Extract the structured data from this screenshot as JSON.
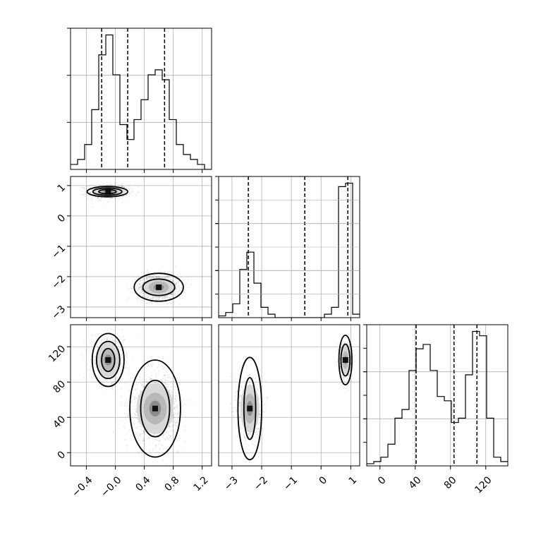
{
  "chart_data": {
    "type": "corner",
    "title": "",
    "grid": true,
    "line_color": "#000000",
    "fill_color": "#8c8c8c",
    "params": [
      {
        "xlim": [
          -0.62,
          1.33
        ],
        "ticks": [
          -0.4,
          -0.0,
          0.4,
          0.8,
          1.2
        ],
        "tick_labels": [
          "−0.4",
          "−0.0",
          "0.4",
          "0.8",
          "1.2"
        ]
      },
      {
        "xlim": [
          -3.45,
          1.3
        ],
        "ticks": [
          -3,
          -2,
          -1,
          0,
          1
        ],
        "tick_labels": [
          "−3",
          "−2",
          "−1",
          "0",
          "1"
        ]
      },
      {
        "xlim": [
          -15,
          145
        ],
        "ticks": [
          0,
          40,
          80,
          120
        ],
        "tick_labels": [
          "0",
          "40",
          "80",
          "120"
        ]
      }
    ],
    "histograms": [
      {
        "param": 0,
        "edges": [
          -0.62,
          -0.5225,
          -0.425,
          -0.3275,
          -0.23,
          -0.1325,
          -0.035,
          0.0625,
          0.16,
          0.2575,
          0.355,
          0.4525,
          0.55,
          0.6475,
          0.745,
          0.8425,
          0.94,
          1.0375,
          1.135,
          1.2325,
          1.33
        ],
        "counts": [
          1,
          2,
          5,
          12,
          23,
          27,
          19,
          9,
          6,
          10,
          14,
          19,
          20,
          18,
          10,
          5,
          3,
          2,
          1,
          0
        ],
        "quantiles": [
          -0.19,
          0.17,
          0.68
        ]
      },
      {
        "param": 1,
        "edges": [
          -3.45,
          -3.2125,
          -2.975,
          -2.7375,
          -2.5,
          -2.2625,
          -2.025,
          -1.7875,
          -1.55,
          -1.3125,
          -1.075,
          -0.8375,
          -0.6,
          -0.3625,
          -0.125,
          0.1125,
          0.35,
          0.5875,
          0.825,
          1.0625,
          1.3
        ],
        "counts": [
          0.5,
          1.5,
          4,
          14,
          19,
          10,
          3,
          1,
          0,
          0,
          0,
          0,
          0,
          0,
          0,
          1,
          3,
          38,
          39,
          1
        ],
        "quantiles": [
          -2.45,
          -0.55,
          0.9
        ]
      },
      {
        "param": 2,
        "edges": [
          -15,
          -7,
          1,
          9,
          17,
          25,
          33,
          41,
          49,
          57,
          65,
          73,
          81,
          89,
          97,
          105,
          113,
          121,
          129,
          137,
          145
        ],
        "counts": [
          0.5,
          1,
          2,
          5,
          11,
          13,
          22,
          27,
          28,
          22,
          16,
          15,
          10,
          11,
          21,
          31,
          30,
          11,
          2,
          1
        ],
        "quantiles": [
          41,
          84,
          110
        ]
      }
    ],
    "scatter_panels": [
      {
        "x": 0,
        "y": 1,
        "clusters": [
          {
            "center": [
              -0.1,
              0.8
            ],
            "sd": [
              0.14,
              0.12
            ],
            "n": 700
          },
          {
            "center": [
              0.6,
              -2.35
            ],
            "sd": [
              0.14,
              0.2
            ],
            "n": 1500
          }
        ]
      },
      {
        "x": 0,
        "y": 2,
        "clusters": [
          {
            "center": [
              -0.1,
              105
            ],
            "sd": [
              0.11,
              12
            ],
            "n": 900
          },
          {
            "center": [
              0.55,
              50
            ],
            "sd": [
              0.16,
              18
            ],
            "n": 1500
          }
        ]
      },
      {
        "x": 1,
        "y": 2,
        "clusters": [
          {
            "center": [
              -2.4,
              50
            ],
            "sd": [
              0.2,
              17
            ],
            "n": 800
          },
          {
            "center": [
              0.82,
              105
            ],
            "sd": [
              0.1,
              10
            ],
            "n": 900
          }
        ]
      }
    ],
    "contour_panels": [
      {
        "x": 0,
        "y": 1,
        "rings": [
          {
            "c": [
              -0.11,
              0.8
            ],
            "r": [
              0.28,
              0.17
            ]
          },
          {
            "c": [
              -0.11,
              0.8
            ],
            "r": [
              0.2,
              0.12
            ]
          },
          {
            "c": [
              -0.11,
              0.8
            ],
            "r": [
              0.12,
              0.07
            ]
          },
          {
            "c": [
              0.6,
              -2.35
            ],
            "r": [
              0.34,
              0.46
            ]
          },
          {
            "c": [
              0.6,
              -2.35
            ],
            "r": [
              0.22,
              0.27
            ]
          }
        ]
      },
      {
        "x": 0,
        "y": 2,
        "rings": [
          {
            "c": [
              -0.1,
              105
            ],
            "r": [
              0.22,
              30
            ]
          },
          {
            "c": [
              -0.1,
              105
            ],
            "r": [
              0.16,
              21
            ]
          },
          {
            "c": [
              -0.1,
              105
            ],
            "r": [
              0.09,
              13
            ]
          },
          {
            "c": [
              0.55,
              50
            ],
            "r": [
              0.35,
              55
            ]
          },
          {
            "c": [
              0.55,
              50
            ],
            "r": [
              0.2,
              32
            ]
          }
        ]
      },
      {
        "x": 1,
        "y": 2,
        "rings": [
          {
            "c": [
              -2.4,
              50
            ],
            "r": [
              0.4,
              58
            ]
          },
          {
            "c": [
              -2.4,
              50
            ],
            "r": [
              0.2,
              35
            ]
          },
          {
            "c": [
              0.82,
              105
            ],
            "r": [
              0.22,
              28
            ]
          },
          {
            "c": [
              0.82,
              105
            ],
            "r": [
              0.15,
              18
            ]
          }
        ]
      }
    ]
  }
}
